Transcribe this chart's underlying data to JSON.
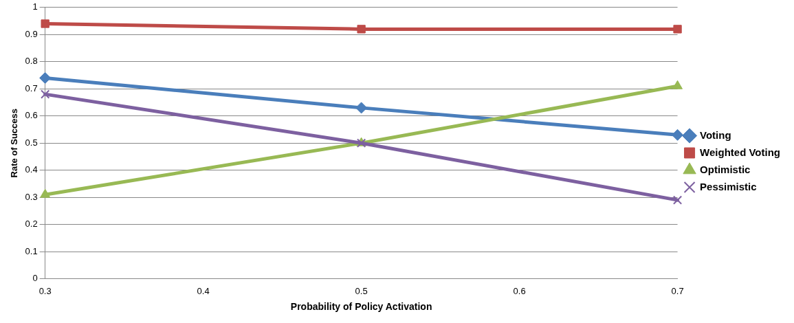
{
  "chart_data": {
    "type": "line",
    "xlabel": "Probability of Policy Activation",
    "ylabel": "Rate of Success",
    "x": [
      0.3,
      0.5,
      0.7
    ],
    "series": [
      {
        "name": "Voting",
        "color": "#4a7ebb",
        "marker": "diamond",
        "values": [
          0.74,
          0.63,
          0.53
        ]
      },
      {
        "name": "Weighted Voting",
        "color": "#be4b48",
        "marker": "square",
        "values": [
          0.94,
          0.92,
          0.92
        ]
      },
      {
        "name": "Optimistic",
        "color": "#98b954",
        "marker": "triangle",
        "values": [
          0.31,
          0.5,
          0.71
        ]
      },
      {
        "name": "Pessimistic",
        "color": "#7d60a0",
        "marker": "cross",
        "values": [
          0.68,
          0.5,
          0.29
        ]
      }
    ],
    "xlim": [
      0.3,
      0.7
    ],
    "xticks": [
      0.3,
      0.4,
      0.5,
      0.6,
      0.7
    ],
    "ylim": [
      0,
      1
    ],
    "yticks": [
      0,
      0.1,
      0.2,
      0.3,
      0.4,
      0.5,
      0.6,
      0.7,
      0.8,
      0.9,
      1
    ],
    "grid": "y",
    "legend": "right",
    "line_style": "solid"
  }
}
